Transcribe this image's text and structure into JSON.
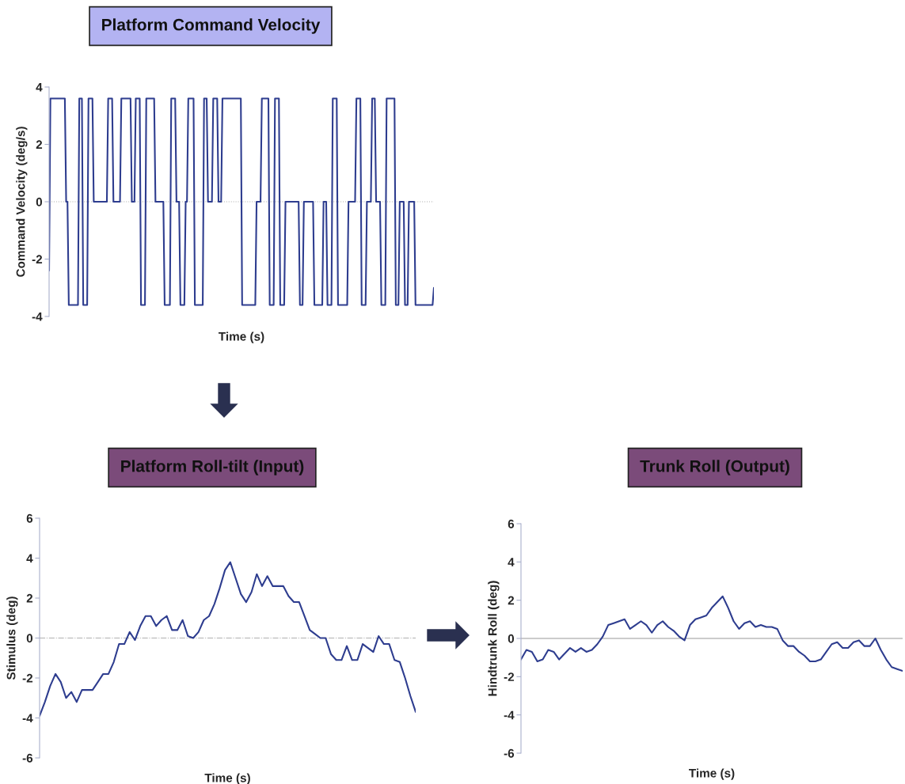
{
  "chart_data": [
    {
      "type": "line",
      "title": "Platform Command Velocity",
      "xlabel": "Time (s)",
      "ylabel": "Command Velocity (deg/s)",
      "color": "#2e3d8f",
      "ylim": [
        -4,
        4
      ],
      "yticks": [
        -4,
        -2,
        0,
        2,
        4
      ],
      "tick_labels": "y",
      "ref_lines": [
        {
          "axis": "y",
          "value": 0,
          "color": "#b0b0b0",
          "line_style": "dotted"
        }
      ],
      "categories": [
        null,
        null,
        null,
        null,
        null,
        null,
        null,
        null,
        null,
        null,
        null,
        null,
        null,
        null,
        null,
        null,
        null,
        null,
        null,
        null,
        null,
        null,
        null,
        null,
        null,
        null,
        null,
        null,
        null,
        null,
        null,
        null,
        null,
        null,
        null,
        null,
        null,
        null,
        null,
        null,
        null,
        null,
        null,
        null,
        null,
        null,
        null,
        null,
        null,
        null,
        null,
        null,
        null,
        null,
        null,
        null,
        null,
        null,
        null,
        null,
        null,
        null,
        null,
        null,
        null,
        null,
        null,
        null,
        null,
        null,
        null,
        null,
        null,
        null,
        null,
        null,
        null,
        null,
        null,
        null,
        null,
        null,
        null,
        null,
        null,
        null,
        null,
        null,
        null,
        null,
        null,
        null,
        null,
        null,
        null,
        null,
        null,
        null,
        null,
        null,
        null,
        null,
        null,
        null,
        null,
        null,
        null,
        null,
        null,
        null,
        null,
        null,
        null,
        null,
        null,
        null,
        null,
        null,
        null,
        null,
        null,
        null,
        null,
        null,
        null,
        null,
        null,
        null,
        null,
        null,
        null,
        null,
        null,
        null,
        null,
        null,
        null,
        null,
        null,
        null,
        null,
        null,
        null,
        null,
        null,
        null,
        null,
        null,
        null,
        null,
        null,
        null,
        null,
        null,
        null,
        null,
        null,
        null,
        null,
        null,
        null,
        null,
        null,
        null,
        null,
        null,
        null,
        null,
        null,
        null,
        null,
        null,
        null,
        null,
        null,
        null,
        null,
        null,
        null,
        null,
        null,
        null,
        null,
        null,
        null,
        null,
        null,
        null,
        null,
        null,
        null,
        null,
        null,
        null,
        null,
        null,
        null,
        null,
        null,
        null,
        null,
        null,
        null,
        null,
        null,
        null,
        null,
        null,
        null,
        null,
        null,
        null,
        null,
        null,
        null,
        null,
        null,
        null,
        null,
        null,
        null,
        null,
        null,
        null,
        null,
        null,
        null,
        null,
        null,
        null,
        null,
        null,
        null,
        null,
        null,
        null,
        null,
        null,
        null,
        null,
        null,
        null,
        null,
        null,
        null,
        null,
        null,
        null,
        null,
        null,
        null,
        null,
        null,
        null,
        null,
        null,
        null,
        null,
        null,
        null,
        null,
        null,
        null,
        null,
        null,
        null,
        null,
        null,
        null,
        null,
        null,
        null,
        null,
        null,
        null,
        null,
        null,
        null,
        null,
        null,
        null,
        null,
        null,
        null,
        null,
        null,
        null,
        null,
        null,
        null,
        null,
        null,
        null,
        null
      ],
      "values": [
        -2.4,
        3.6,
        3.6,
        3.6,
        3.6,
        3.6,
        3.6,
        3.6,
        3.6,
        3.6,
        3.6,
        3.6,
        3.6,
        0,
        0,
        -3.6,
        -3.6,
        -3.6,
        -3.6,
        -3.6,
        -3.6,
        -3.6,
        -3.6,
        3.6,
        3.6,
        3.6,
        -3.6,
        -3.6,
        -3.6,
        -3.6,
        3.6,
        3.6,
        3.6,
        3.6,
        0,
        0,
        0,
        0,
        0,
        0,
        0,
        0,
        0,
        0,
        0,
        3.6,
        3.6,
        3.6,
        3.6,
        0,
        0,
        0,
        0,
        0,
        0,
        3.6,
        3.6,
        3.6,
        3.6,
        3.6,
        3.6,
        3.6,
        3.6,
        0,
        0,
        0,
        3.6,
        3.6,
        3.6,
        3.6,
        -3.6,
        -3.6,
        -3.6,
        -3.6,
        3.6,
        3.6,
        3.6,
        3.6,
        3.6,
        3.6,
        3.6,
        0,
        0,
        0,
        0,
        0,
        0,
        0,
        -3.6,
        -3.6,
        -3.6,
        -3.6,
        -3.6,
        3.6,
        3.6,
        3.6,
        3.6,
        0,
        0,
        0,
        -3.6,
        -3.6,
        -3.6,
        -3.6,
        0,
        0,
        3.6,
        3.6,
        3.6,
        3.6,
        3.6,
        -3.6,
        -3.6,
        -3.6,
        -3.6,
        -3.6,
        -3.6,
        -3.6,
        3.6,
        3.6,
        3.6,
        0,
        0,
        0,
        0,
        3.6,
        3.6,
        3.6,
        3.6,
        0,
        0,
        0,
        3.6,
        3.6,
        3.6,
        3.6,
        3.6,
        3.6,
        3.6,
        3.6,
        3.6,
        3.6,
        3.6,
        3.6,
        3.6,
        3.6,
        3.6,
        -3.6,
        -3.6,
        -3.6,
        -3.6,
        -3.6,
        -3.6,
        -3.6,
        -3.6,
        -3.6,
        -3.6,
        -3.6,
        0,
        0,
        0,
        0,
        3.6,
        3.6,
        3.6,
        3.6,
        3.6,
        3.6,
        -3.6,
        -3.6,
        -3.6,
        -3.6,
        3.6,
        3.6,
        3.6,
        3.6,
        -3.6,
        -3.6,
        -3.6,
        -3.6,
        0,
        0,
        0,
        0,
        0,
        0,
        0,
        0,
        0,
        0,
        0,
        -3.6,
        -3.6,
        -3.6,
        0,
        0,
        0,
        0,
        0,
        0,
        0,
        0,
        -3.6,
        -3.6,
        -3.6,
        -3.6,
        -3.6,
        -3.6,
        -3.6,
        0,
        0,
        0,
        -3.6,
        -3.6,
        -3.6,
        -3.6,
        3.6,
        3.6,
        3.6,
        3.6,
        -3.6,
        -3.6,
        -3.6,
        -3.6,
        -3.6,
        -3.6,
        -3.6,
        -3.6,
        0,
        0,
        0,
        0,
        0,
        0,
        3.6,
        3.6,
        3.6,
        3.6,
        -3.6,
        -3.6,
        -3.6,
        -3.6,
        0,
        0,
        0,
        0,
        3.6,
        3.6,
        3.6,
        0,
        0,
        0,
        0,
        -3.6,
        -3.6,
        -3.6,
        -3.6,
        3.6,
        3.6,
        3.6,
        3.6,
        3.6,
        3.6,
        3.6,
        -3.6,
        -3.6,
        -3.6,
        0,
        0,
        0,
        0,
        -3.6,
        -3.6,
        -3.6,
        0,
        0,
        0,
        0,
        0,
        -3.6,
        -3.6,
        -3.6,
        -3.6,
        -3.6,
        -3.6,
        -3.6,
        -3.6,
        -3.6,
        -3.6,
        -3.6,
        -3.6,
        -3.6,
        -3.6,
        -3.0
      ]
    },
    {
      "type": "line",
      "title": "Platform Roll-tilt (Input)",
      "xlabel": "Time (s)",
      "ylabel": "Stimulus (deg)",
      "color": "#2e3d8f",
      "ylim": [
        -6,
        6
      ],
      "yticks": [
        -6,
        -4,
        -2,
        0,
        2,
        4,
        6
      ],
      "tick_labels": "y",
      "ref_lines": [
        {
          "axis": "y",
          "value": 0,
          "color": "#b0b0b0",
          "line_style": "dashdot"
        }
      ],
      "categories": [
        null,
        null,
        null,
        null,
        null,
        null,
        null,
        null,
        null,
        null,
        null,
        null,
        null,
        null,
        null,
        null,
        null,
        null,
        null,
        null,
        null,
        null,
        null,
        null,
        null,
        null,
        null,
        null,
        null,
        null,
        null,
        null,
        null,
        null,
        null,
        null,
        null,
        null,
        null,
        null,
        null,
        null,
        null,
        null,
        null,
        null,
        null,
        null,
        null,
        null,
        null,
        null,
        null,
        null,
        null,
        null,
        null,
        null,
        null,
        null,
        null,
        null,
        null,
        null,
        null,
        null,
        null,
        null,
        null,
        null,
        null,
        null
      ],
      "values": [
        -3.9,
        -3.2,
        -2.4,
        -1.8,
        -2.2,
        -3.0,
        -2.7,
        -3.2,
        -2.6,
        -2.6,
        -2.6,
        -2.2,
        -1.8,
        -1.8,
        -1.2,
        -0.3,
        -0.3,
        0.3,
        -0.1,
        0.6,
        1.1,
        1.1,
        0.6,
        0.9,
        1.1,
        0.4,
        0.4,
        0.9,
        0.1,
        0.0,
        0.3,
        0.9,
        1.1,
        1.7,
        2.5,
        3.4,
        3.8,
        3.0,
        2.2,
        1.8,
        2.3,
        3.2,
        2.6,
        3.1,
        2.6,
        2.6,
        2.6,
        2.1,
        1.8,
        1.8,
        1.1,
        0.4,
        0.2,
        0.0,
        0.0,
        -0.8,
        -1.1,
        -1.1,
        -0.4,
        -1.1,
        -1.1,
        -0.3,
        -0.5,
        -0.7,
        0.1,
        -0.3,
        -0.3,
        -1.1,
        -1.2,
        -2.0,
        -2.9,
        -3.7
      ]
    },
    {
      "type": "line",
      "title": "Trunk Roll (Output)",
      "xlabel": "Time (s)",
      "ylabel": "Hindtrunk Roll (deg)",
      "color": "#2e3d8f",
      "ylim": [
        -6,
        6
      ],
      "yticks": [
        -6,
        -4,
        -2,
        0,
        2,
        4,
        6
      ],
      "tick_labels": "y",
      "ref_lines": [
        {
          "axis": "y",
          "value": 0,
          "color": "#9a9a9a",
          "line_style": "solid"
        }
      ],
      "categories": [
        null,
        null,
        null,
        null,
        null,
        null,
        null,
        null,
        null,
        null,
        null,
        null,
        null,
        null,
        null,
        null,
        null,
        null,
        null,
        null,
        null,
        null,
        null,
        null,
        null,
        null,
        null,
        null,
        null,
        null,
        null,
        null,
        null,
        null,
        null,
        null,
        null,
        null,
        null,
        null,
        null,
        null,
        null,
        null,
        null,
        null,
        null,
        null,
        null,
        null,
        null,
        null,
        null,
        null,
        null,
        null,
        null,
        null,
        null,
        null,
        null,
        null,
        null,
        null,
        null,
        null,
        null,
        null,
        null,
        null,
        null
      ],
      "values": [
        -1.1,
        -0.6,
        -0.7,
        -1.2,
        -1.1,
        -0.6,
        -0.7,
        -1.1,
        -0.8,
        -0.5,
        -0.7,
        -0.5,
        -0.7,
        -0.6,
        -0.3,
        0.1,
        0.7,
        0.8,
        0.9,
        1.0,
        0.5,
        0.7,
        0.9,
        0.7,
        0.3,
        0.7,
        0.9,
        0.6,
        0.4,
        0.1,
        -0.1,
        0.7,
        1.0,
        1.1,
        1.2,
        1.6,
        1.9,
        2.2,
        1.6,
        0.9,
        0.5,
        0.8,
        0.9,
        0.6,
        0.7,
        0.6,
        0.6,
        0.5,
        -0.1,
        -0.4,
        -0.4,
        -0.7,
        -0.9,
        -1.2,
        -1.2,
        -1.1,
        -0.7,
        -0.3,
        -0.2,
        -0.5,
        -0.5,
        -0.2,
        -0.1,
        -0.4,
        -0.4,
        0.0,
        -0.6,
        -1.1,
        -1.5,
        -1.6,
        -1.7
      ]
    }
  ]
}
